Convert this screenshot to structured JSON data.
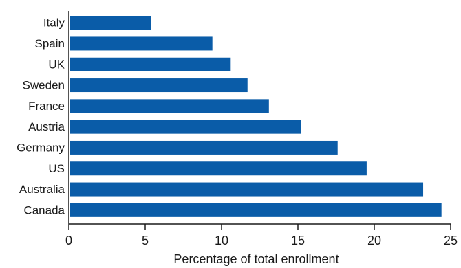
{
  "chart_data": {
    "type": "bar",
    "orientation": "horizontal",
    "title": "",
    "xlabel": "Percentage of total enrollment",
    "ylabel": "",
    "categories": [
      "Italy",
      "Spain",
      "UK",
      "Sweden",
      "France",
      "Austria",
      "Germany",
      "US",
      "Australia",
      "Canada"
    ],
    "values": [
      5.4,
      9.4,
      10.6,
      11.7,
      13.1,
      15.2,
      17.6,
      19.5,
      23.2,
      24.4
    ],
    "xlim": [
      0,
      25
    ],
    "xticks": [
      "0",
      "5",
      "10",
      "15",
      "20",
      "25"
    ],
    "grid": false,
    "bar_color": "#0a5ca8"
  }
}
